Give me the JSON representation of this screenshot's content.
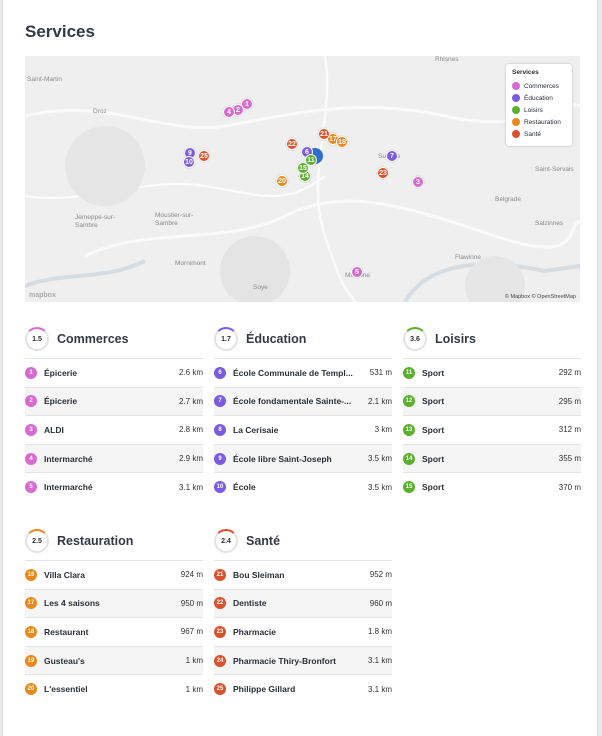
{
  "page": {
    "title": "Services"
  },
  "map": {
    "legend_title": "Services",
    "legend": [
      {
        "label": "Commerces",
        "color": "#d86bd1"
      },
      {
        "label": "Éducation",
        "color": "#7b5ce0"
      },
      {
        "label": "Loisirs",
        "color": "#5cb030"
      },
      {
        "label": "Restauration",
        "color": "#e9891c"
      },
      {
        "label": "Santé",
        "color": "#d9522c"
      }
    ],
    "places": [
      "Saint-Martin",
      "Rhisnes",
      "Droz",
      "Suarlée",
      "Saint-Servais",
      "Belgrade",
      "Jemeppe-sur-Sambre",
      "Moustier-sur-Sambre",
      "Mornimont",
      "Salzinnes",
      "Flawinne",
      "Soye",
      "Malonne"
    ],
    "attribution": "© Mapbox © OpenStreetMap",
    "logo": "mapbox",
    "markers": [
      {
        "n": "1",
        "cat": "commerces"
      },
      {
        "n": "2",
        "cat": "commerces"
      },
      {
        "n": "3",
        "cat": "commerces"
      },
      {
        "n": "4",
        "cat": "commerces"
      },
      {
        "n": "5",
        "cat": "commerces"
      },
      {
        "n": "6",
        "cat": "education"
      },
      {
        "n": "7",
        "cat": "education"
      },
      {
        "n": "9",
        "cat": "education"
      },
      {
        "n": "10",
        "cat": "education"
      },
      {
        "n": "11",
        "cat": "loisirs"
      },
      {
        "n": "14",
        "cat": "loisirs"
      },
      {
        "n": "15",
        "cat": "loisirs"
      },
      {
        "n": "17",
        "cat": "restauration"
      },
      {
        "n": "18",
        "cat": "restauration"
      },
      {
        "n": "20",
        "cat": "restauration"
      },
      {
        "n": "21",
        "cat": "sante"
      },
      {
        "n": "22",
        "cat": "sante"
      },
      {
        "n": "23",
        "cat": "sante"
      },
      {
        "n": "25",
        "cat": "sante"
      }
    ]
  },
  "sections": [
    {
      "key": "commerces",
      "title": "Commerces",
      "score": "1.5",
      "color": "#d86bd1",
      "items": [
        {
          "n": "1",
          "name": "Épicerie",
          "dist": "2.6 km"
        },
        {
          "n": "2",
          "name": "Épicerie",
          "dist": "2.7 km"
        },
        {
          "n": "3",
          "name": "ALDI",
          "dist": "2.8 km"
        },
        {
          "n": "4",
          "name": "Intermarché",
          "dist": "2.9 km"
        },
        {
          "n": "5",
          "name": "Intermarché",
          "dist": "3.1 km"
        }
      ]
    },
    {
      "key": "education",
      "title": "Éducation",
      "score": "1.7",
      "color": "#7b5ce0",
      "items": [
        {
          "n": "6",
          "name": "École Communale de Templ...",
          "dist": "531 m"
        },
        {
          "n": "7",
          "name": "École fondamentale Sainte-...",
          "dist": "2.1 km"
        },
        {
          "n": "8",
          "name": "La Cerisaie",
          "dist": "3 km"
        },
        {
          "n": "9",
          "name": "École libre Saint-Joseph",
          "dist": "3.5 km"
        },
        {
          "n": "10",
          "name": "École",
          "dist": "3.5 km"
        }
      ]
    },
    {
      "key": "loisirs",
      "title": "Loisirs",
      "score": "3.6",
      "color": "#5cb030",
      "items": [
        {
          "n": "11",
          "name": "Sport",
          "dist": "292 m"
        },
        {
          "n": "12",
          "name": "Sport",
          "dist": "295 m"
        },
        {
          "n": "13",
          "name": "Sport",
          "dist": "312 m"
        },
        {
          "n": "14",
          "name": "Sport",
          "dist": "355 m"
        },
        {
          "n": "15",
          "name": "Sport",
          "dist": "370 m"
        }
      ]
    },
    {
      "key": "restauration",
      "title": "Restauration",
      "score": "2.5",
      "color": "#e9891c",
      "items": [
        {
          "n": "16",
          "name": "Villa Clara",
          "dist": "924 m"
        },
        {
          "n": "17",
          "name": "Les 4 saisons",
          "dist": "950 m"
        },
        {
          "n": "18",
          "name": "Restaurant",
          "dist": "967 m"
        },
        {
          "n": "19",
          "name": "Gusteau's",
          "dist": "1 km"
        },
        {
          "n": "20",
          "name": "L'essentiel",
          "dist": "1 km"
        }
      ]
    },
    {
      "key": "sante",
      "title": "Santé",
      "score": "2.4",
      "color": "#d9522c",
      "items": [
        {
          "n": "21",
          "name": "Bou Sleiman",
          "dist": "952 m"
        },
        {
          "n": "22",
          "name": "Dentiste",
          "dist": "960 m"
        },
        {
          "n": "23",
          "name": "Pharmacie",
          "dist": "1.8 km"
        },
        {
          "n": "24",
          "name": "Pharmacie Thiry-Bronfort",
          "dist": "3.1 km"
        },
        {
          "n": "25",
          "name": "Philippe Gillard",
          "dist": "3.1 km"
        }
      ]
    }
  ]
}
